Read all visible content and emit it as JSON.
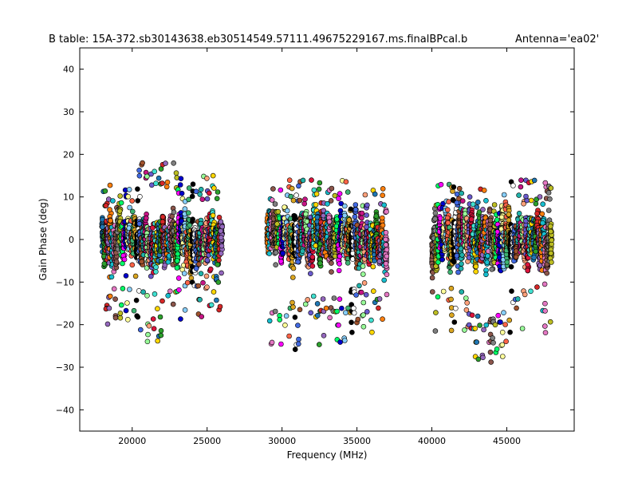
{
  "chart_data": {
    "type": "scatter",
    "title": "B table: 15A-372.sb30143638.eb30514549.57111.49675229167.ms.finalBPcal.b",
    "subtitle": "Antenna='ea02'",
    "xlabel": "Frequency (MHz)",
    "ylabel": "Gain Phase (deg)",
    "xlim": [
      16500,
      49500
    ],
    "ylim": [
      -45,
      45
    ],
    "xticks": [
      20000,
      25000,
      30000,
      35000,
      40000,
      45000
    ],
    "xtick_labels": [
      "20000",
      "25000",
      "30000",
      "35000",
      "40000",
      "45000"
    ],
    "yticks": [
      -40,
      -30,
      -20,
      -10,
      0,
      10,
      20,
      30,
      40
    ],
    "ytick_labels": [
      "−40",
      "−30",
      "−20",
      "−10",
      "0",
      "10",
      "20",
      "30",
      "40"
    ],
    "grid": false,
    "legend": "none",
    "marker_edge_color": "#000000",
    "palette": [
      "#1f77b4",
      "#2ca02c",
      "#d62728",
      "#9467bd",
      "#ff7f0e",
      "#17becf",
      "#e377c2",
      "#8c564b",
      "#7f7f7f",
      "#bcbd22",
      "#00ff66",
      "#ff00ff",
      "#0000cc",
      "#ffff99",
      "#87cefa",
      "#ff6347",
      "#3cb371",
      "#daa520",
      "#000000",
      "#ffffff",
      "#4169e1",
      "#a0522d",
      "#20b2aa",
      "#c71585",
      "#98fb98",
      "#ffa07a",
      "#6a5acd",
      "#dc143c",
      "#40e0d0",
      "#ffd700"
    ],
    "series": [
      {
        "x_start": 17980,
        "x_end": 20450,
        "y_center": 0,
        "y_spread": 8,
        "y_min": -20,
        "y_max": 13
      },
      {
        "x_start": 20460,
        "x_end": 22950,
        "y_center": 0,
        "y_spread": 8,
        "y_min": -24,
        "y_max": 18
      },
      {
        "x_start": 22960,
        "x_end": 25950,
        "y_center": 0,
        "y_spread": 8,
        "y_min": -19,
        "y_max": 15
      },
      {
        "x_start": 29000,
        "x_end": 31950,
        "y_center": 0,
        "y_spread": 8,
        "y_min": -26,
        "y_max": 14
      },
      {
        "x_start": 31960,
        "x_end": 34450,
        "y_center": 0,
        "y_spread": 8,
        "y_min": -25,
        "y_max": 14
      },
      {
        "x_start": 34460,
        "x_end": 36950,
        "y_center": 0,
        "y_spread": 8,
        "y_min": -22,
        "y_max": 12
      },
      {
        "x_start": 40000,
        "x_end": 42450,
        "y_center": 0,
        "y_spread": 8,
        "y_min": -23,
        "y_max": 13
      },
      {
        "x_start": 42460,
        "x_end": 44950,
        "y_center": 0,
        "y_spread": 8,
        "y_min": -29,
        "y_max": 12
      },
      {
        "x_start": 44960,
        "x_end": 47950,
        "y_center": 0,
        "y_spread": 8,
        "y_min": -22,
        "y_max": 14
      }
    ]
  }
}
